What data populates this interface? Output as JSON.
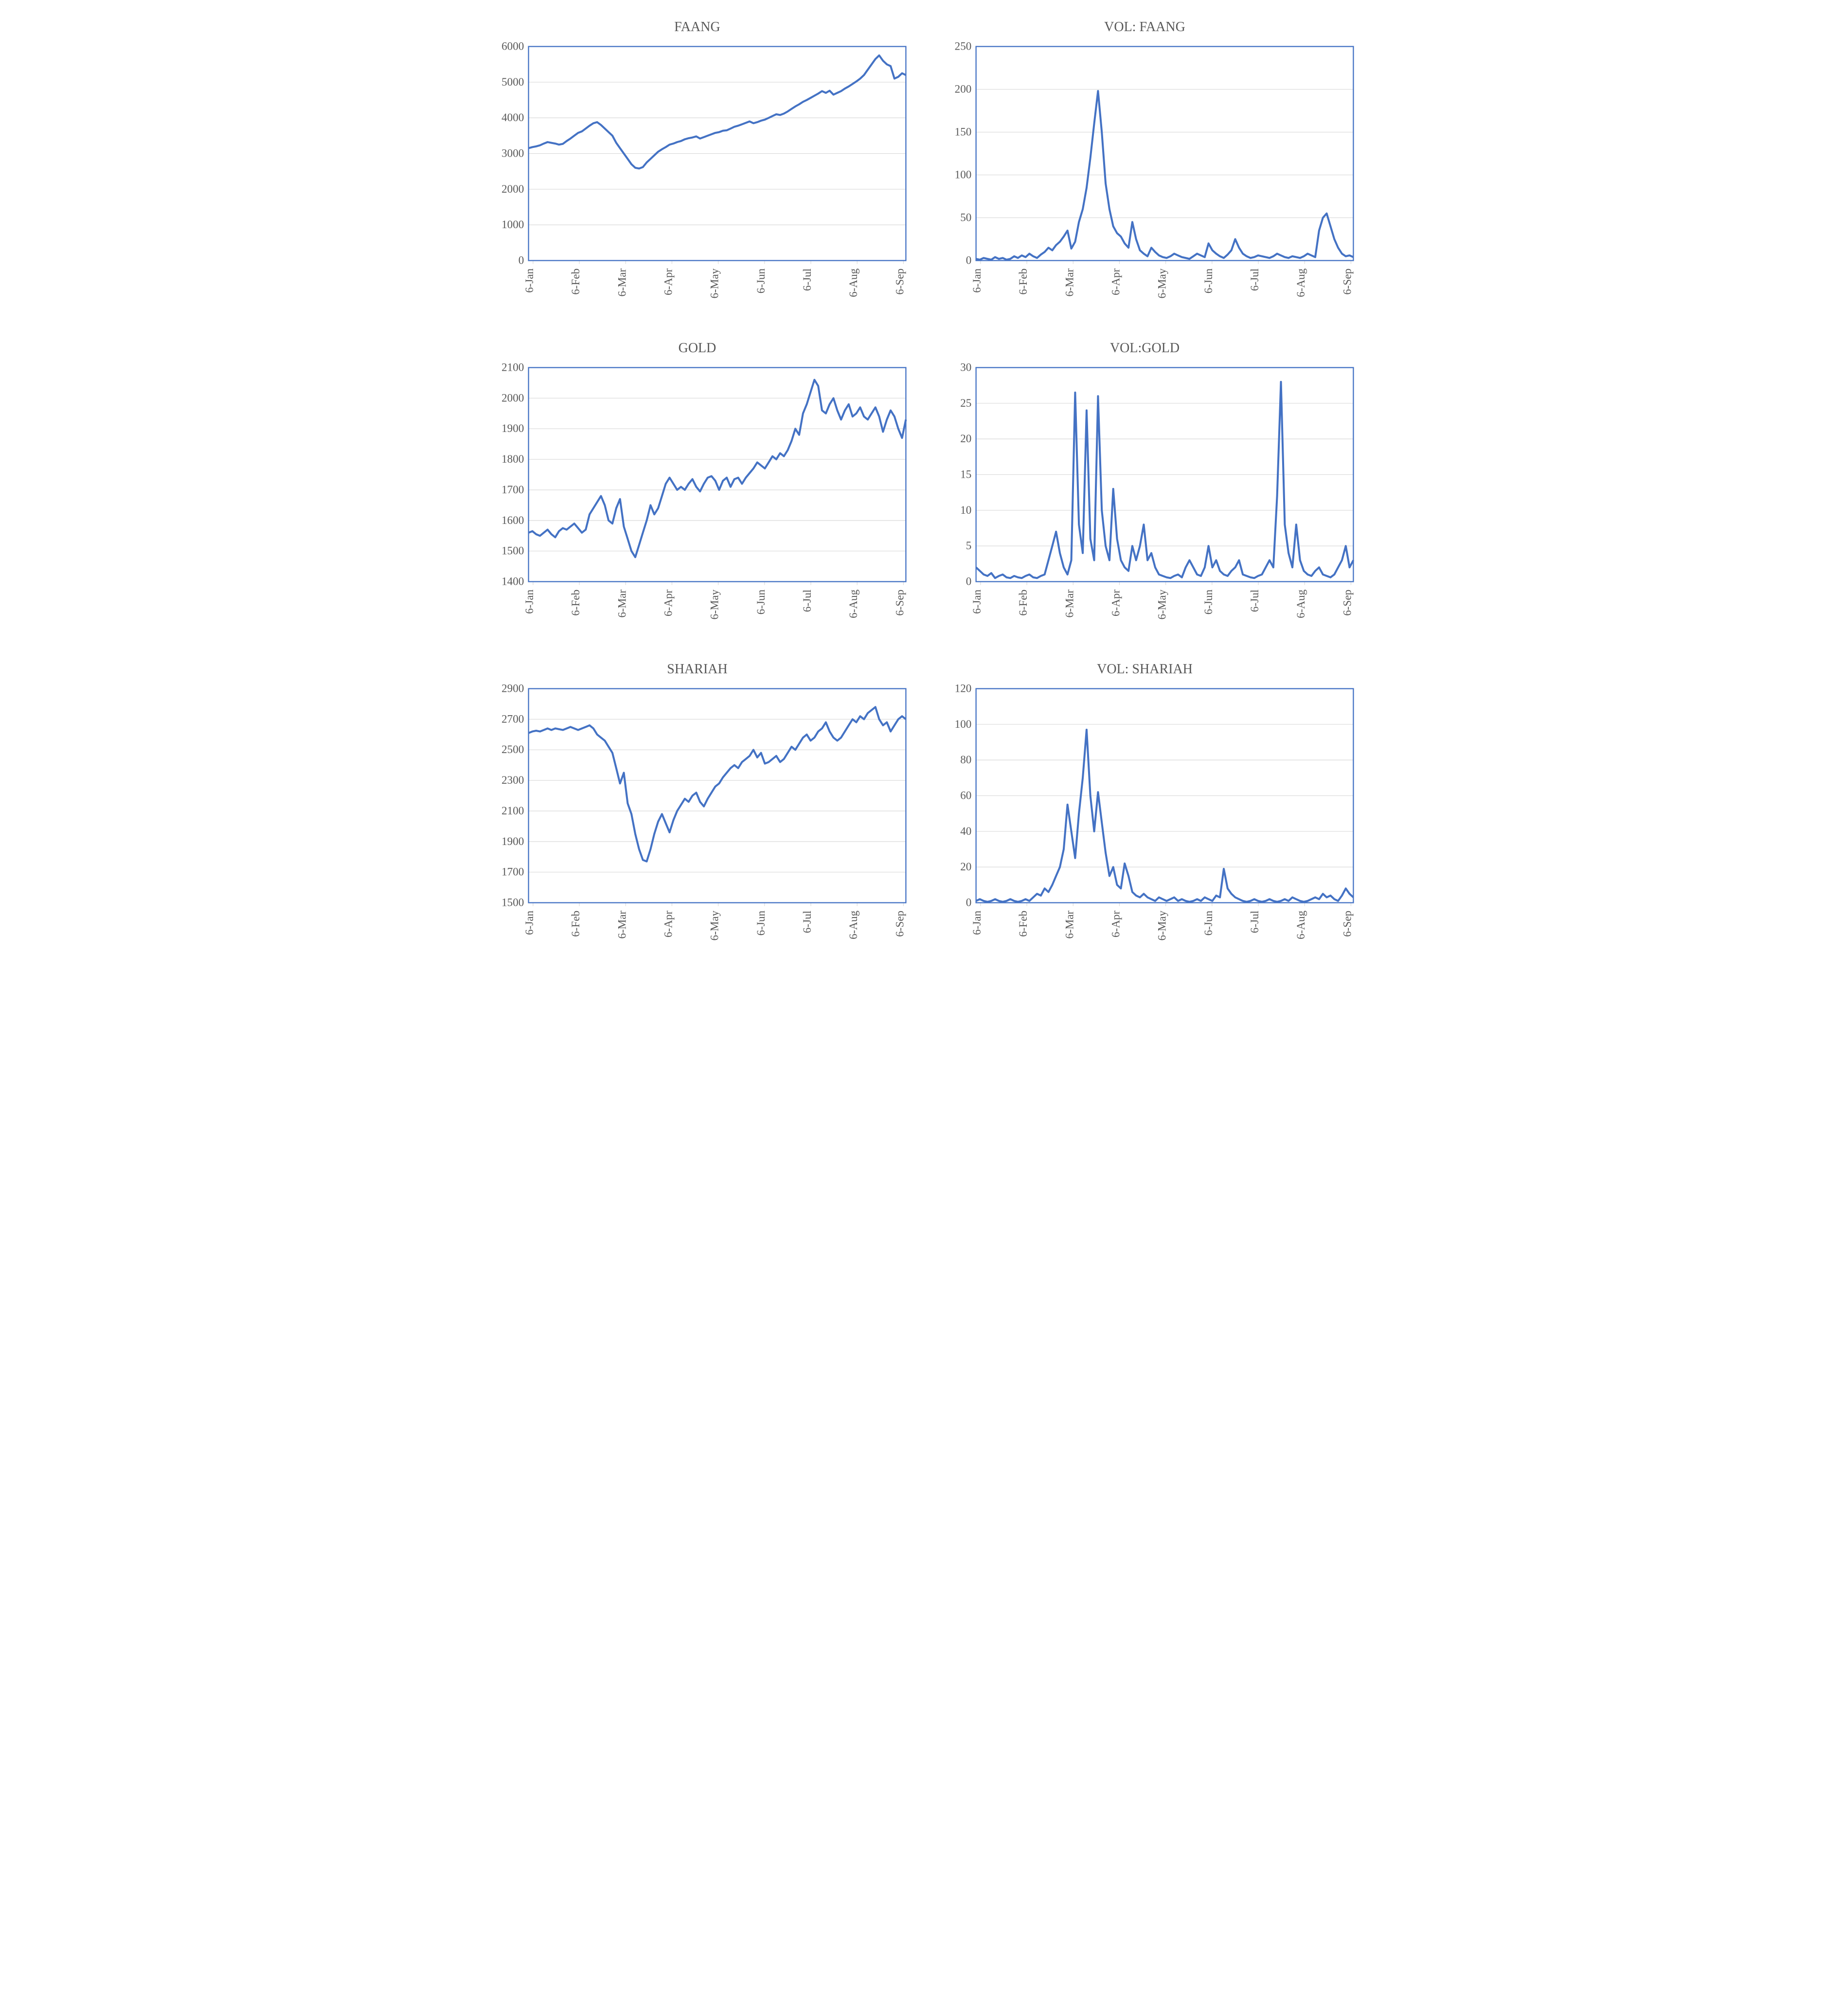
{
  "layout": {
    "rows": 3,
    "cols": 2,
    "background_color": "#ffffff",
    "title_color": "#595959",
    "title_fontsize": 28,
    "tick_label_color": "#595959",
    "tick_label_fontsize": 20,
    "line_color": "#4472c4",
    "line_width": 3.5,
    "gridline_color": "#d9d9d9",
    "border_color": "#4472c4",
    "border_width": 2,
    "font_family": "Times New Roman"
  },
  "charts": [
    {
      "id": "faang",
      "title": "FAANG",
      "type": "line",
      "x_labels": [
        "6-Jan",
        "6-Feb",
        "6-Mar",
        "6-Apr",
        "6-May",
        "6-Jun",
        "6-Jul",
        "6-Aug",
        "6-Sep"
      ],
      "ylim": [
        0,
        6000
      ],
      "ytick_step": 1000,
      "yticks": [
        0,
        1000,
        2000,
        3000,
        4000,
        5000,
        6000
      ],
      "values": [
        3150,
        3180,
        3200,
        3230,
        3280,
        3320,
        3300,
        3280,
        3250,
        3270,
        3350,
        3420,
        3500,
        3580,
        3620,
        3700,
        3780,
        3850,
        3880,
        3800,
        3700,
        3600,
        3500,
        3300,
        3150,
        3000,
        2850,
        2700,
        2600,
        2580,
        2620,
        2750,
        2850,
        2950,
        3050,
        3120,
        3180,
        3250,
        3280,
        3320,
        3350,
        3400,
        3430,
        3450,
        3480,
        3420,
        3460,
        3500,
        3540,
        3580,
        3600,
        3640,
        3650,
        3700,
        3750,
        3780,
        3820,
        3860,
        3900,
        3850,
        3880,
        3920,
        3950,
        4000,
        4050,
        4100,
        4080,
        4120,
        4180,
        4250,
        4320,
        4380,
        4450,
        4500,
        4560,
        4620,
        4680,
        4750,
        4700,
        4760,
        4650,
        4700,
        4750,
        4820,
        4880,
        4950,
        5020,
        5100,
        5200,
        5350,
        5500,
        5650,
        5750,
        5600,
        5500,
        5450,
        5100,
        5150,
        5250,
        5200
      ],
      "border": true,
      "gridlines": "horizontal"
    },
    {
      "id": "vol-faang",
      "title": "VOL: FAANG",
      "type": "line",
      "x_labels": [
        "6-Jan",
        "6-Feb",
        "6-Mar",
        "6-Apr",
        "6-May",
        "6-Jun",
        "6-Jul",
        "6-Aug",
        "6-Sep"
      ],
      "ylim": [
        0,
        250
      ],
      "ytick_step": 50,
      "yticks": [
        0,
        50,
        100,
        150,
        200,
        250
      ],
      "values": [
        2,
        1,
        3,
        2,
        1,
        4,
        2,
        3,
        1,
        2,
        5,
        3,
        6,
        4,
        8,
        5,
        3,
        7,
        10,
        15,
        12,
        18,
        22,
        28,
        35,
        14,
        22,
        45,
        60,
        85,
        120,
        160,
        198,
        150,
        90,
        60,
        40,
        32,
        28,
        20,
        15,
        45,
        25,
        12,
        8,
        5,
        15,
        10,
        6,
        4,
        3,
        5,
        8,
        6,
        4,
        3,
        2,
        5,
        8,
        6,
        4,
        20,
        12,
        8,
        5,
        3,
        7,
        12,
        25,
        15,
        8,
        5,
        3,
        4,
        6,
        5,
        4,
        3,
        5,
        8,
        6,
        4,
        3,
        5,
        4,
        3,
        5,
        8,
        6,
        4,
        35,
        50,
        55,
        40,
        25,
        15,
        8,
        5,
        6,
        4
      ],
      "border": true,
      "gridlines": "horizontal"
    },
    {
      "id": "gold",
      "title": "GOLD",
      "type": "line",
      "x_labels": [
        "6-Jan",
        "6-Feb",
        "6-Mar",
        "6-Apr",
        "6-May",
        "6-Jun",
        "6-Jul",
        "6-Aug",
        "6-Sep"
      ],
      "ylim": [
        1400,
        2100
      ],
      "ytick_step": 100,
      "yticks": [
        1400,
        1500,
        1600,
        1700,
        1800,
        1900,
        2000,
        2100
      ],
      "values": [
        1560,
        1565,
        1555,
        1550,
        1560,
        1570,
        1555,
        1545,
        1565,
        1575,
        1570,
        1580,
        1590,
        1575,
        1560,
        1570,
        1620,
        1640,
        1660,
        1680,
        1650,
        1600,
        1590,
        1640,
        1670,
        1580,
        1540,
        1500,
        1480,
        1520,
        1560,
        1600,
        1650,
        1620,
        1640,
        1680,
        1720,
        1740,
        1720,
        1700,
        1710,
        1700,
        1720,
        1735,
        1710,
        1695,
        1720,
        1740,
        1745,
        1730,
        1700,
        1730,
        1740,
        1710,
        1735,
        1740,
        1720,
        1740,
        1755,
        1770,
        1790,
        1780,
        1770,
        1790,
        1810,
        1800,
        1820,
        1810,
        1830,
        1860,
        1900,
        1880,
        1950,
        1980,
        2020,
        2060,
        2040,
        1960,
        1950,
        1980,
        2000,
        1960,
        1930,
        1960,
        1980,
        1940,
        1950,
        1970,
        1940,
        1930,
        1950,
        1970,
        1940,
        1890,
        1930,
        1960,
        1940,
        1900,
        1870,
        1930
      ],
      "border": true,
      "gridlines": "horizontal"
    },
    {
      "id": "vol-gold",
      "title": "VOL:GOLD",
      "type": "line",
      "x_labels": [
        "6-Jan",
        "6-Feb",
        "6-Mar",
        "6-Apr",
        "6-May",
        "6-Jun",
        "6-Jul",
        "6-Aug",
        "6-Sep"
      ],
      "ylim": [
        0,
        30
      ],
      "ytick_step": 5,
      "yticks": [
        0,
        5,
        10,
        15,
        20,
        25,
        30
      ],
      "values": [
        2,
        1.5,
        1,
        0.8,
        1.2,
        0.5,
        0.8,
        1,
        0.6,
        0.5,
        0.8,
        0.6,
        0.5,
        0.8,
        1,
        0.6,
        0.5,
        0.8,
        1,
        3,
        5,
        7,
        4,
        2,
        1,
        3,
        26.5,
        8,
        4,
        24,
        6,
        3,
        26,
        10,
        5,
        3,
        13,
        6,
        3,
        2,
        1.5,
        5,
        3,
        5,
        8,
        3,
        4,
        2,
        1,
        0.8,
        0.6,
        0.5,
        0.8,
        1,
        0.6,
        2,
        3,
        2,
        1,
        0.8,
        2,
        5,
        2,
        3,
        1.5,
        1,
        0.8,
        1.5,
        2,
        3,
        1,
        0.8,
        0.6,
        0.5,
        0.8,
        1,
        2,
        3,
        2,
        12,
        28,
        8,
        4,
        2,
        8,
        3,
        1.5,
        1,
        0.8,
        1.5,
        2,
        1,
        0.8,
        0.6,
        1,
        2,
        3,
        5,
        2,
        3
      ],
      "border": true,
      "gridlines": "horizontal"
    },
    {
      "id": "shariah",
      "title": "SHARIAH",
      "type": "line",
      "x_labels": [
        "6-Jan",
        "6-Feb",
        "6-Mar",
        "6-Apr",
        "6-May",
        "6-Jun",
        "6-Jul",
        "6-Aug",
        "6-Sep"
      ],
      "ylim": [
        1500,
        2900
      ],
      "ytick_step": 200,
      "yticks": [
        1500,
        1700,
        1900,
        2100,
        2300,
        2500,
        2700,
        2900
      ],
      "values": [
        2610,
        2620,
        2625,
        2620,
        2630,
        2640,
        2630,
        2640,
        2635,
        2630,
        2640,
        2650,
        2640,
        2630,
        2640,
        2650,
        2660,
        2640,
        2600,
        2580,
        2560,
        2520,
        2480,
        2380,
        2280,
        2350,
        2150,
        2080,
        1950,
        1850,
        1780,
        1770,
        1850,
        1950,
        2030,
        2080,
        2020,
        1960,
        2040,
        2100,
        2140,
        2180,
        2160,
        2200,
        2220,
        2160,
        2130,
        2180,
        2220,
        2260,
        2280,
        2320,
        2350,
        2380,
        2400,
        2380,
        2420,
        2440,
        2460,
        2500,
        2450,
        2480,
        2410,
        2420,
        2440,
        2460,
        2420,
        2440,
        2480,
        2520,
        2500,
        2540,
        2580,
        2600,
        2560,
        2580,
        2620,
        2640,
        2680,
        2620,
        2580,
        2560,
        2580,
        2620,
        2660,
        2700,
        2680,
        2720,
        2700,
        2740,
        2760,
        2780,
        2700,
        2660,
        2680,
        2620,
        2660,
        2700,
        2720,
        2700
      ],
      "border": true,
      "gridlines": "horizontal"
    },
    {
      "id": "vol-shariah",
      "title": "VOL: SHARIAH",
      "type": "line",
      "x_labels": [
        "6-Jan",
        "6-Feb",
        "6-Mar",
        "6-Apr",
        "6-May",
        "6-Jun",
        "6-Jul",
        "6-Aug",
        "6-Sep"
      ],
      "ylim": [
        0,
        120
      ],
      "ytick_step": 20,
      "yticks": [
        0,
        20,
        40,
        60,
        80,
        100,
        120
      ],
      "values": [
        1,
        2,
        1,
        0.5,
        1,
        2,
        1,
        0.5,
        1,
        2,
        1,
        0.5,
        1,
        2,
        1,
        3,
        5,
        4,
        8,
        6,
        10,
        15,
        20,
        30,
        55,
        40,
        25,
        50,
        70,
        97,
        60,
        40,
        62,
        45,
        28,
        15,
        20,
        10,
        8,
        22,
        15,
        6,
        4,
        3,
        5,
        3,
        2,
        1,
        3,
        2,
        1,
        2,
        3,
        1,
        2,
        1,
        0.5,
        1,
        2,
        1,
        3,
        2,
        1,
        4,
        3,
        19,
        8,
        5,
        3,
        2,
        1,
        0.5,
        1,
        2,
        1,
        0.5,
        1,
        2,
        1,
        0.5,
        1,
        2,
        1,
        3,
        2,
        1,
        0.5,
        1,
        2,
        3,
        2,
        5,
        3,
        4,
        2,
        1,
        4,
        8,
        5,
        3
      ],
      "border": true,
      "gridlines": "horizontal"
    }
  ]
}
